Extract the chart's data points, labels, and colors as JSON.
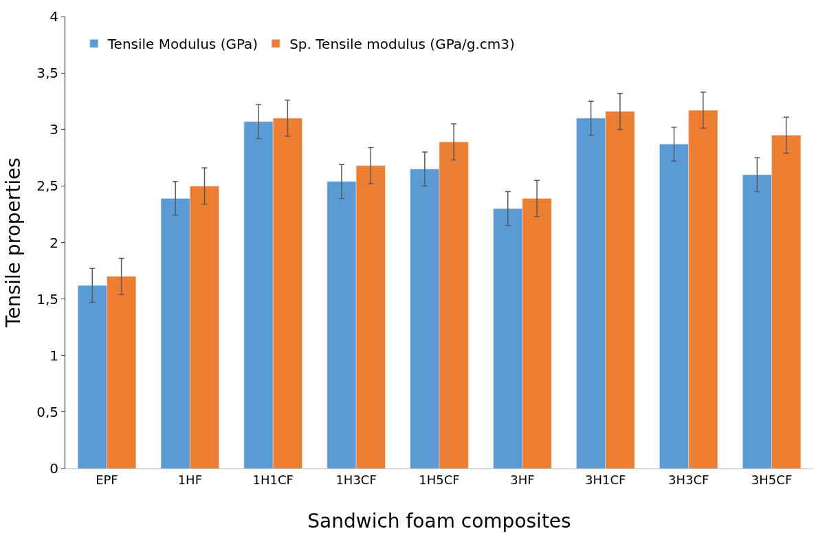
{
  "chart_data": {
    "type": "bar",
    "xlabel": "Sandwich foam composites",
    "ylabel": "Tensile properties",
    "categories": [
      "EPF",
      "1HF",
      "1H1CF",
      "1H3CF",
      "1H5CF",
      "3HF",
      "3H1CF",
      "3H3CF",
      "3H5CF"
    ],
    "series": [
      {
        "name": "Tensile Modulus (GPa)",
        "color": "#5b9bd5",
        "values": [
          1.62,
          2.39,
          3.07,
          2.54,
          2.65,
          2.3,
          3.1,
          2.87,
          2.6
        ],
        "errors": [
          0.15,
          0.15,
          0.15,
          0.15,
          0.15,
          0.15,
          0.15,
          0.15,
          0.15
        ]
      },
      {
        "name": "Sp. Tensile modulus (GPa/g.cm3)",
        "color": "#ed7d31",
        "values": [
          1.7,
          2.5,
          3.1,
          2.68,
          2.89,
          2.39,
          3.16,
          3.17,
          2.95
        ],
        "errors": [
          0.16,
          0.16,
          0.16,
          0.16,
          0.16,
          0.16,
          0.16,
          0.16,
          0.16
        ]
      }
    ],
    "ylim": [
      0,
      4
    ],
    "yticks": [
      0,
      {
        "value": 0.5,
        "label": "0,5"
      },
      1,
      {
        "value": 1.5,
        "label": "1,5"
      },
      2,
      {
        "value": 2.5,
        "label": "2,5"
      },
      3,
      {
        "value": 3.5,
        "label": "3,5"
      },
      4
    ],
    "legend": "top left"
  }
}
